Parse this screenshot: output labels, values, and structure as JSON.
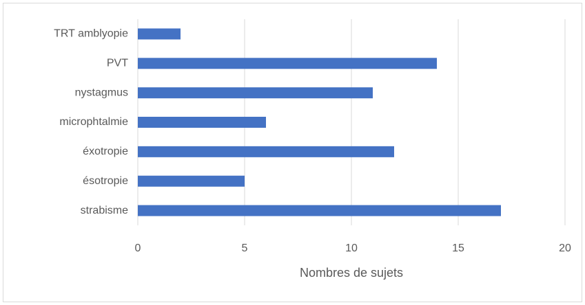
{
  "chart_data": {
    "type": "bar",
    "orientation": "horizontal",
    "categories": [
      "TRT amblyopie",
      "PVT",
      "nystagmus",
      "microphtalmie",
      "éxotropie",
      "ésotropie",
      "strabisme"
    ],
    "values": [
      2,
      14,
      11,
      6,
      12,
      5,
      17
    ],
    "color": "#4472c4",
    "xlabel": "Nombres de sujets",
    "xlim": [
      0,
      20
    ],
    "xticks": [
      0,
      5,
      10,
      15,
      20
    ],
    "grid": true
  }
}
